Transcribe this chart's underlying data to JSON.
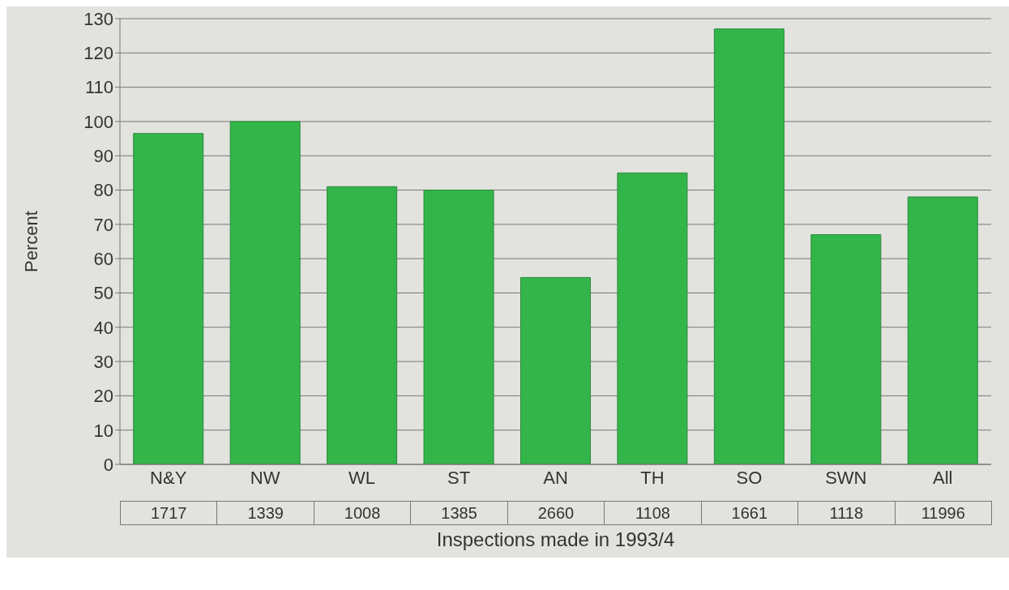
{
  "chart_data": {
    "type": "bar",
    "ylabel": "Percent",
    "xlabel": "Inspections made in 1993/4",
    "categories": [
      "N&Y",
      "NW",
      "WL",
      "ST",
      "AN",
      "TH",
      "SO",
      "SWN",
      "All"
    ],
    "values": [
      96.5,
      100,
      81,
      80,
      54.5,
      85,
      127,
      67,
      78
    ],
    "color": "#33b54a",
    "ylim": [
      0,
      130
    ],
    "yticks": [
      0,
      10,
      20,
      30,
      40,
      50,
      60,
      70,
      80,
      90,
      100,
      110,
      120,
      130
    ],
    "grid": "y",
    "annotations": [
      "1717",
      "1339",
      "1008",
      "1385",
      "2660",
      "1108",
      "1661",
      "1118",
      "11996"
    ]
  }
}
